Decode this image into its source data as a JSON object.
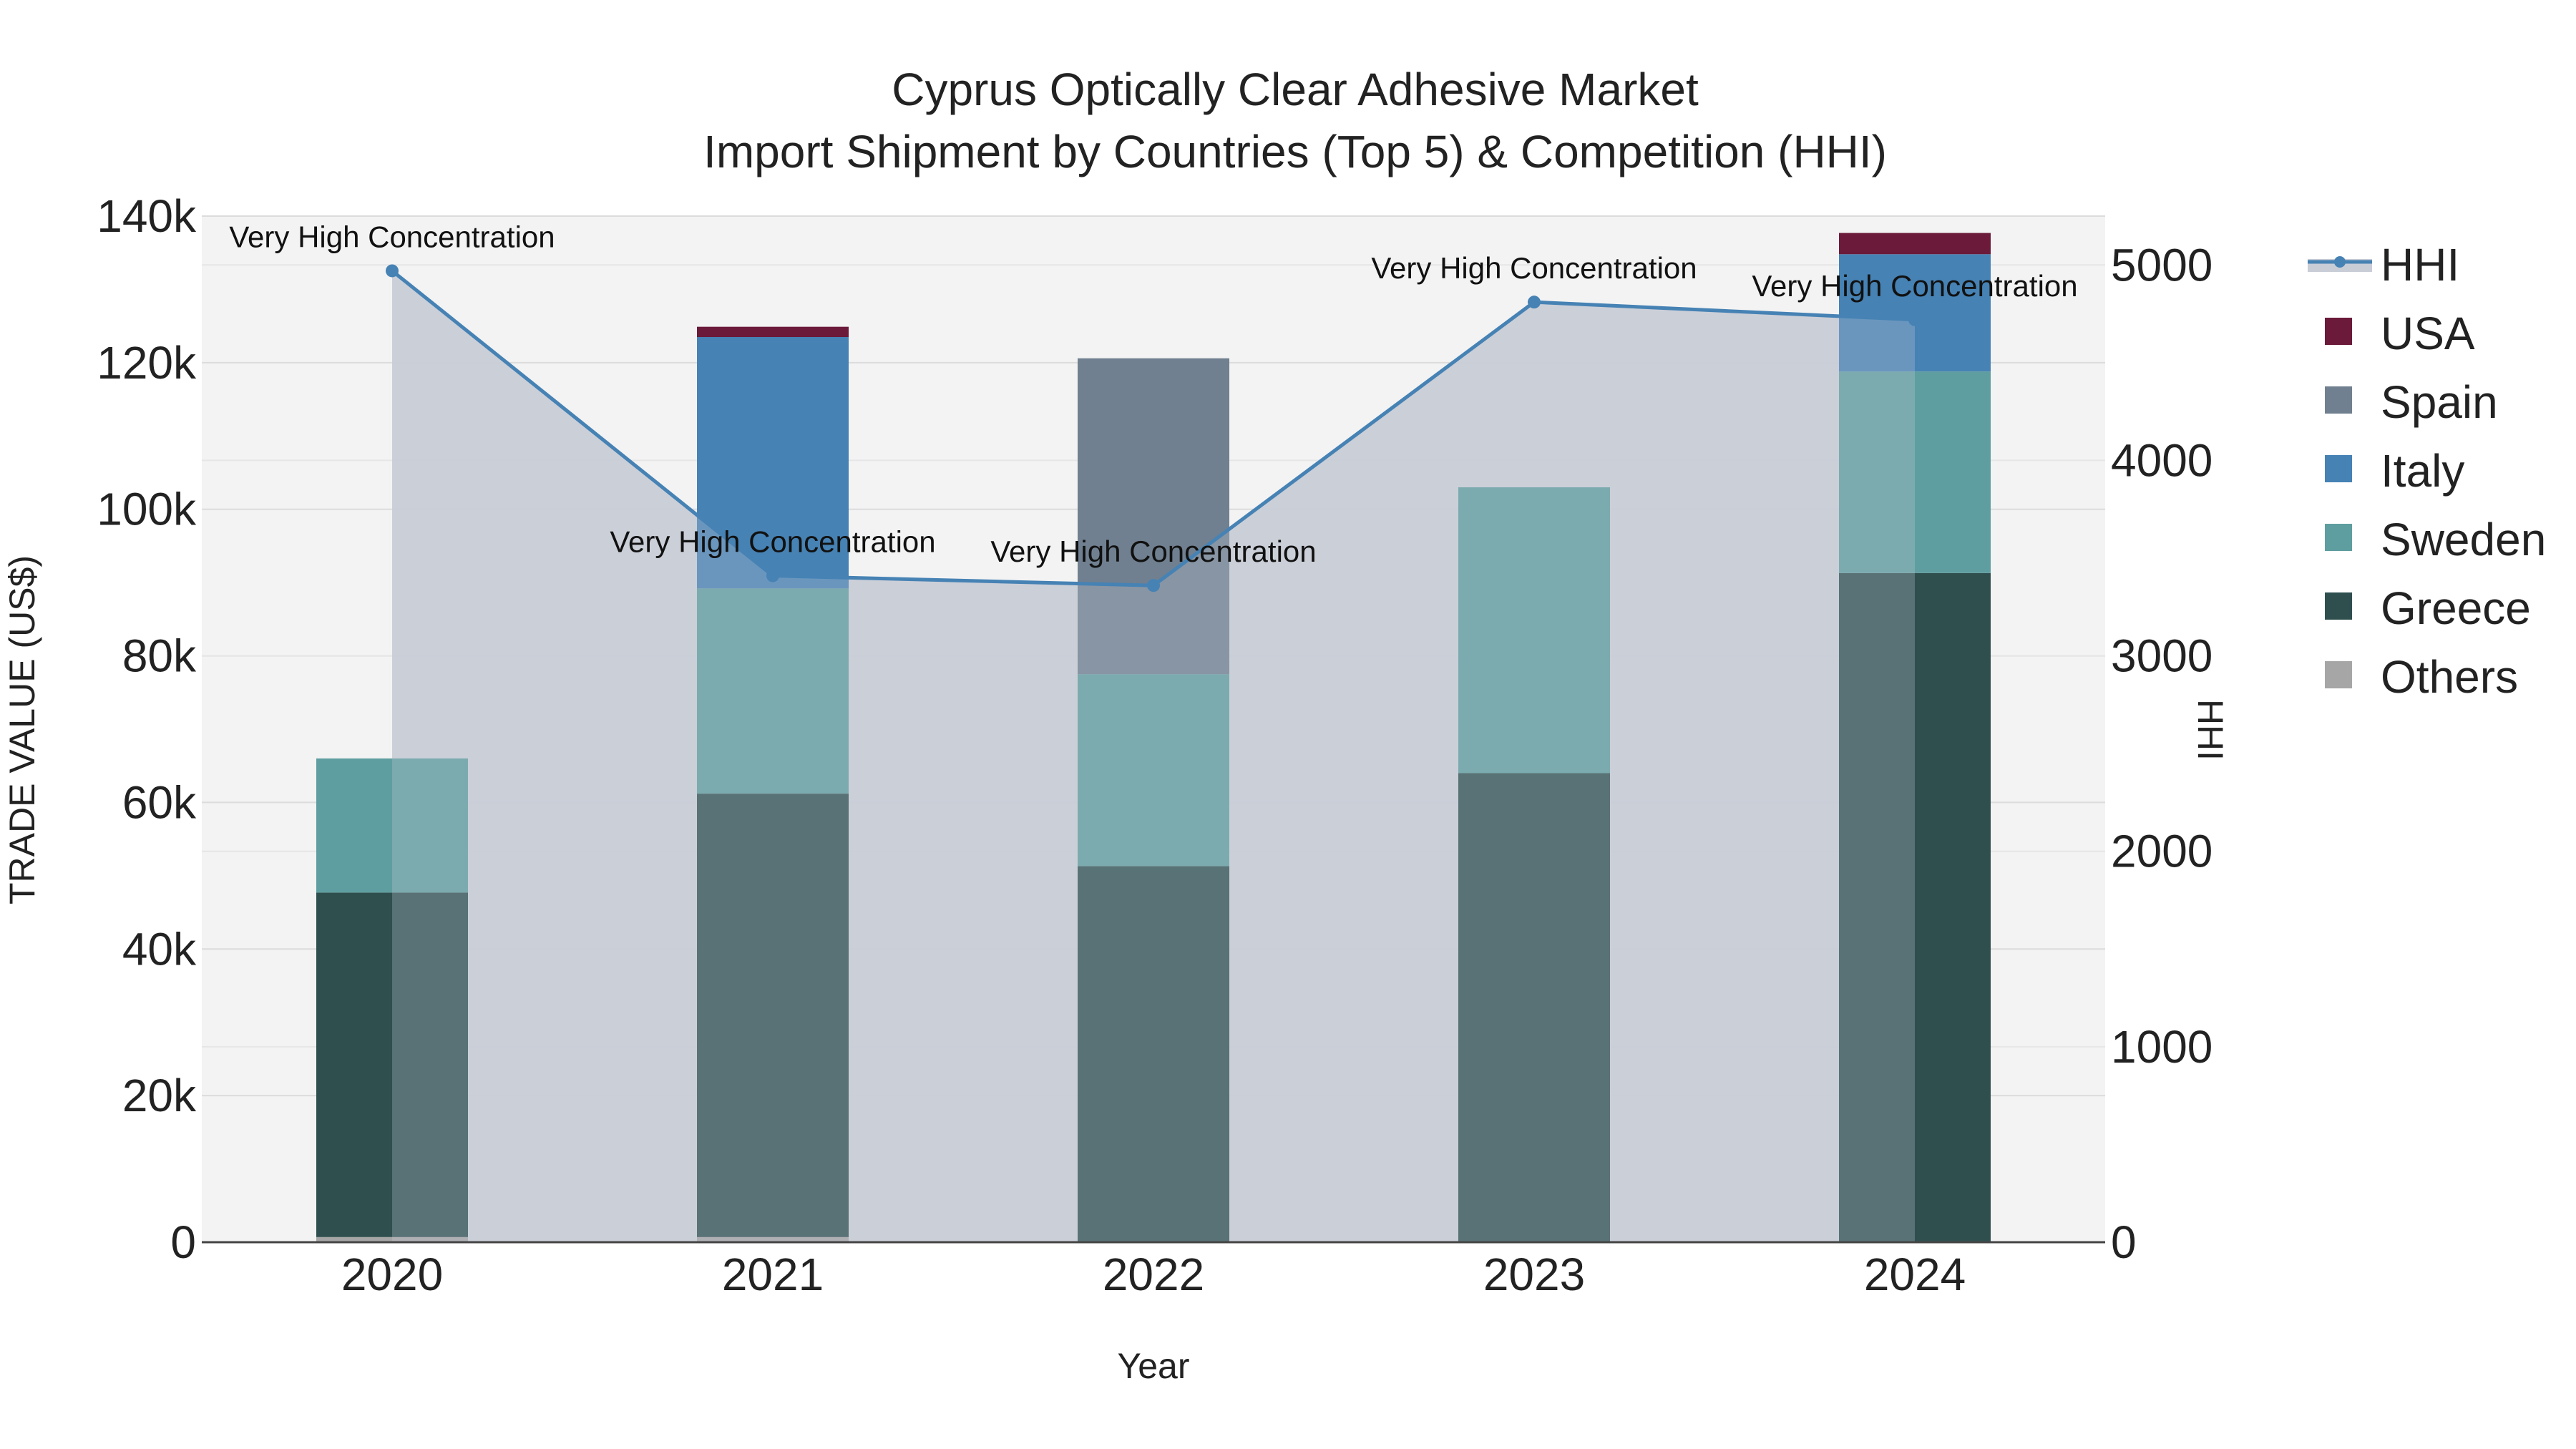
{
  "chart_data": {
    "type": "bar",
    "title": "Cyprus Optically Clear Adhesive Market",
    "subtitle": "Import Shipment by Countries (Top 5) & Competition (HHI)",
    "xlabel": "Year",
    "ylabel": "TRADE VALUE (US$)",
    "y2label": "HHI",
    "categories": [
      "2020",
      "2021",
      "2022",
      "2023",
      "2024"
    ],
    "ylim": [
      0,
      140000
    ],
    "y2lim": [
      0,
      5250
    ],
    "y_ticks": [
      0,
      20000,
      40000,
      60000,
      80000,
      100000,
      120000,
      140000
    ],
    "y_tick_labels": [
      "0",
      "20k",
      "40k",
      "60k",
      "80k",
      "100k",
      "120k",
      "140k"
    ],
    "y2_ticks": [
      0,
      1000,
      2000,
      3000,
      4000,
      5000
    ],
    "y2_tick_labels": [
      "0",
      "1000",
      "2000",
      "3000",
      "4000",
      "5000"
    ],
    "stacked": true,
    "series": [
      {
        "name": "Others",
        "color": "#a6a6a6",
        "values": [
          700,
          700,
          0,
          0,
          0
        ]
      },
      {
        "name": "Greece",
        "color": "#2f4f4f",
        "values": [
          47000,
          60500,
          51300,
          64000,
          91300
        ]
      },
      {
        "name": "Sweden",
        "color": "#5f9ea0",
        "values": [
          18300,
          28000,
          26200,
          39000,
          27500
        ]
      },
      {
        "name": "Italy",
        "color": "#4682b4",
        "values": [
          0,
          34300,
          0,
          0,
          16000
        ]
      },
      {
        "name": "Spain",
        "color": "#708090",
        "values": [
          0,
          0,
          43100,
          0,
          0
        ]
      },
      {
        "name": "USA",
        "color": "#6b1a3a",
        "values": [
          0,
          1400,
          0,
          0,
          2900
        ]
      }
    ],
    "hhi": {
      "name": "HHI",
      "color": "#4682b4",
      "area_color": "#c9cdd6",
      "values": [
        4970,
        3410,
        3360,
        4810,
        4720
      ],
      "labels": [
        "Very High Concentration",
        "Very High Concentration",
        "Very High Concentration",
        "Very High Concentration",
        "Very High Concentration"
      ]
    },
    "legend_order": [
      "HHI",
      "USA",
      "Spain",
      "Italy",
      "Sweden",
      "Greece",
      "Others"
    ],
    "legend_position": "right",
    "grid": true
  }
}
